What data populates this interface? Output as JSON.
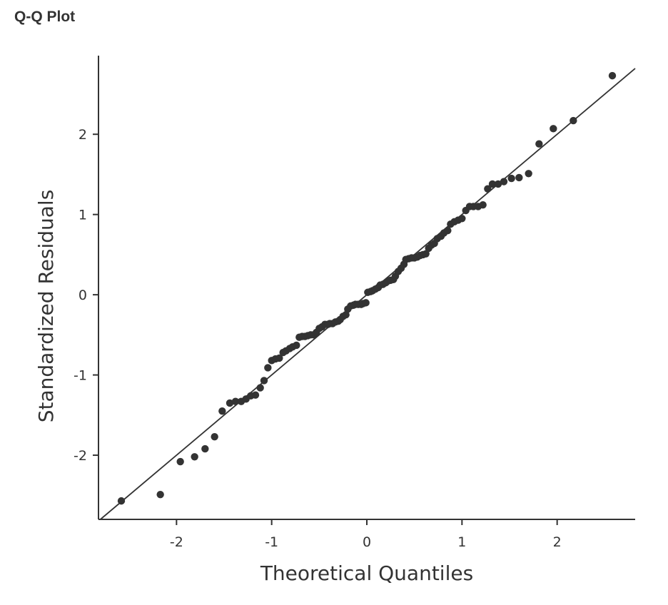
{
  "title": "Q-Q Plot",
  "chart_data": {
    "type": "scatter",
    "xlabel": "Theoretical Quantiles",
    "ylabel": "Standardized Residuals",
    "xlim": [
      -2.82,
      2.82
    ],
    "ylim": [
      -2.8,
      2.98
    ],
    "xticks": [
      -2,
      -1,
      0,
      1,
      2
    ],
    "yticks": [
      -2,
      -1,
      0,
      1,
      2
    ],
    "reference_line": {
      "slope": 1.0,
      "intercept": 0.0
    },
    "point_color": "#333333",
    "line_color": "#333333",
    "points": [
      [
        -2.58,
        -2.57
      ],
      [
        -2.17,
        -2.49
      ],
      [
        -1.96,
        -2.08
      ],
      [
        -1.81,
        -2.02
      ],
      [
        -1.7,
        -1.92
      ],
      [
        -1.6,
        -1.77
      ],
      [
        -1.52,
        -1.45
      ],
      [
        -1.44,
        -1.35
      ],
      [
        -1.38,
        -1.33
      ],
      [
        -1.32,
        -1.33
      ],
      [
        -1.27,
        -1.3
      ],
      [
        -1.22,
        -1.26
      ],
      [
        -1.17,
        -1.25
      ],
      [
        -1.12,
        -1.16
      ],
      [
        -1.08,
        -1.07
      ],
      [
        -1.04,
        -0.91
      ],
      [
        -1.0,
        -0.82
      ],
      [
        -0.96,
        -0.8
      ],
      [
        -0.92,
        -0.79
      ],
      [
        -0.88,
        -0.72
      ],
      [
        -0.85,
        -0.7
      ],
      [
        -0.81,
        -0.67
      ],
      [
        -0.78,
        -0.65
      ],
      [
        -0.74,
        -0.63
      ],
      [
        -0.71,
        -0.53
      ],
      [
        -0.68,
        -0.52
      ],
      [
        -0.65,
        -0.52
      ],
      [
        -0.62,
        -0.51
      ],
      [
        -0.59,
        -0.5
      ],
      [
        -0.56,
        -0.5
      ],
      [
        -0.53,
        -0.47
      ],
      [
        -0.5,
        -0.42
      ],
      [
        -0.47,
        -0.4
      ],
      [
        -0.44,
        -0.37
      ],
      [
        -0.41,
        -0.37
      ],
      [
        -0.39,
        -0.36
      ],
      [
        -0.36,
        -0.36
      ],
      [
        -0.33,
        -0.34
      ],
      [
        -0.3,
        -0.33
      ],
      [
        -0.28,
        -0.31
      ],
      [
        -0.25,
        -0.27
      ],
      [
        -0.22,
        -0.25
      ],
      [
        -0.2,
        -0.18
      ],
      [
        -0.17,
        -0.14
      ],
      [
        -0.14,
        -0.13
      ],
      [
        -0.12,
        -0.12
      ],
      [
        -0.09,
        -0.12
      ],
      [
        -0.06,
        -0.12
      ],
      [
        -0.04,
        -0.11
      ],
      [
        -0.01,
        -0.1
      ],
      [
        0.01,
        0.03
      ],
      [
        0.04,
        0.04
      ],
      [
        0.06,
        0.05
      ],
      [
        0.09,
        0.07
      ],
      [
        0.12,
        0.09
      ],
      [
        0.14,
        0.12
      ],
      [
        0.17,
        0.13
      ],
      [
        0.2,
        0.15
      ],
      [
        0.22,
        0.17
      ],
      [
        0.25,
        0.18
      ],
      [
        0.28,
        0.19
      ],
      [
        0.3,
        0.23
      ],
      [
        0.33,
        0.29
      ],
      [
        0.36,
        0.33
      ],
      [
        0.39,
        0.38
      ],
      [
        0.41,
        0.44
      ],
      [
        0.44,
        0.45
      ],
      [
        0.47,
        0.46
      ],
      [
        0.5,
        0.46
      ],
      [
        0.53,
        0.47
      ],
      [
        0.56,
        0.49
      ],
      [
        0.59,
        0.5
      ],
      [
        0.62,
        0.51
      ],
      [
        0.65,
        0.58
      ],
      [
        0.68,
        0.62
      ],
      [
        0.71,
        0.64
      ],
      [
        0.74,
        0.7
      ],
      [
        0.78,
        0.73
      ],
      [
        0.81,
        0.77
      ],
      [
        0.85,
        0.8
      ],
      [
        0.88,
        0.88
      ],
      [
        0.92,
        0.91
      ],
      [
        0.96,
        0.93
      ],
      [
        1.0,
        0.95
      ],
      [
        1.04,
        1.05
      ],
      [
        1.08,
        1.1
      ],
      [
        1.12,
        1.1
      ],
      [
        1.17,
        1.1
      ],
      [
        1.22,
        1.12
      ],
      [
        1.27,
        1.32
      ],
      [
        1.32,
        1.38
      ],
      [
        1.38,
        1.38
      ],
      [
        1.44,
        1.41
      ],
      [
        1.52,
        1.45
      ],
      [
        1.6,
        1.46
      ],
      [
        1.7,
        1.51
      ],
      [
        1.81,
        1.88
      ],
      [
        1.96,
        2.07
      ],
      [
        2.17,
        2.17
      ],
      [
        2.58,
        2.73
      ]
    ]
  }
}
